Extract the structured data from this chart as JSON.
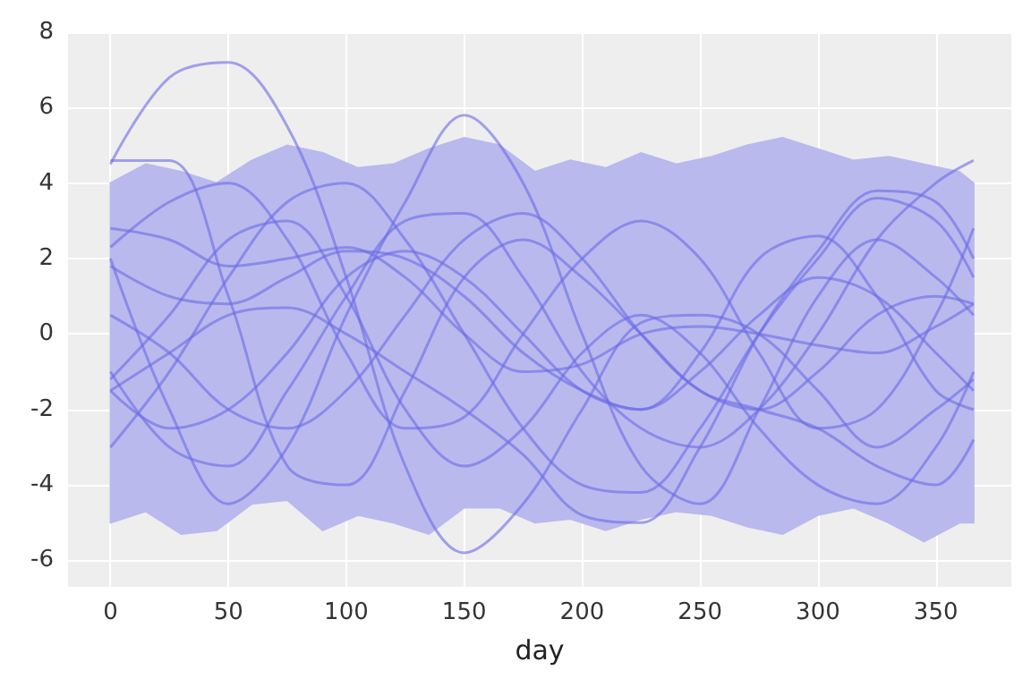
{
  "chart_data": {
    "type": "line",
    "xlabel": "day",
    "xlim": [
      -18,
      382
    ],
    "ylim": [
      -6.7,
      8
    ],
    "xticks": [
      0,
      50,
      100,
      150,
      200,
      250,
      300,
      350
    ],
    "yticks": [
      -6,
      -4,
      -2,
      0,
      2,
      4,
      6,
      8
    ],
    "grid": true,
    "marker": "none",
    "line_style": "solid",
    "series": [
      {
        "color": "#b9b9ee",
        "x": [
          0,
          15,
          30,
          45,
          60,
          75,
          90,
          105,
          120,
          135,
          150,
          165,
          180,
          195,
          210,
          225,
          240,
          255,
          270,
          285,
          300,
          315,
          330,
          345,
          360,
          366
        ],
        "values": [
          null,
          null,
          null,
          null,
          null,
          null,
          null,
          null,
          null,
          null,
          null,
          null,
          null,
          null,
          null,
          null,
          null,
          null,
          null,
          null,
          null,
          null,
          null,
          null,
          null,
          null
        ],
        "upper": [
          4.0,
          4.5,
          4.3,
          4.0,
          4.6,
          5.0,
          4.8,
          4.4,
          4.5,
          4.9,
          5.2,
          5.0,
          4.3,
          4.6,
          4.4,
          4.8,
          4.5,
          4.7,
          5.0,
          5.2,
          4.9,
          4.6,
          4.7,
          4.5,
          4.3,
          4.0
        ],
        "lower": [
          -5.0,
          -4.7,
          -5.3,
          -5.2,
          -4.5,
          -4.4,
          -5.2,
          -4.8,
          -5.0,
          -5.3,
          -4.6,
          -4.6,
          -5.0,
          -4.9,
          -5.2,
          -4.9,
          -4.7,
          -4.8,
          -5.1,
          -5.3,
          -4.8,
          -4.6,
          -5.0,
          -5.5,
          -5.0,
          -5.0
        ]
      },
      {
        "color": "#6b6be6",
        "x": [
          0,
          25,
          50,
          75,
          100,
          125,
          150,
          175,
          200,
          225,
          250,
          275,
          300,
          325,
          350,
          366
        ],
        "values": [
          4.5,
          6.8,
          7.2,
          5.5,
          1.5,
          -3.5,
          -5.8,
          -4.5,
          -2.0,
          0.3,
          0.5,
          0.0,
          -1.5,
          -3.0,
          -2.0,
          -1.2
        ]
      },
      {
        "color": "#6b6be6",
        "x": [
          0,
          25,
          50,
          75,
          100,
          125,
          150,
          175,
          200,
          225,
          250,
          275,
          300,
          325,
          350,
          366
        ],
        "values": [
          4.6,
          4.6,
          1.0,
          -3.5,
          -4.0,
          -1.5,
          1.5,
          2.5,
          1.5,
          0.0,
          -1.5,
          -2.0,
          -1.0,
          0.5,
          1.0,
          0.8
        ]
      },
      {
        "color": "#6b6be6",
        "x": [
          0,
          25,
          50,
          75,
          100,
          125,
          150,
          175,
          200,
          225,
          250,
          275,
          300,
          325,
          350,
          366
        ],
        "values": [
          2.0,
          -2.0,
          -4.5,
          -3.0,
          0.5,
          3.5,
          5.8,
          4.0,
          0.0,
          -3.5,
          -4.5,
          -2.0,
          1.0,
          2.5,
          1.5,
          0.5
        ]
      },
      {
        "color": "#6b6be6",
        "x": [
          0,
          25,
          50,
          75,
          100,
          125,
          150,
          175,
          200,
          225,
          250,
          275,
          300,
          325,
          350,
          366
        ],
        "values": [
          2.8,
          2.5,
          1.8,
          2.0,
          2.3,
          1.5,
          0.0,
          -1.0,
          -0.8,
          0.0,
          0.2,
          0.0,
          -0.3,
          -0.5,
          0.2,
          0.8
        ]
      },
      {
        "color": "#6b6be6",
        "x": [
          0,
          25,
          50,
          75,
          100,
          125,
          150,
          175,
          200,
          225,
          250,
          275,
          300,
          325,
          350,
          366
        ],
        "values": [
          -3.0,
          -1.0,
          1.5,
          3.5,
          4.0,
          2.5,
          0.0,
          -2.5,
          -4.0,
          -4.2,
          -2.5,
          0.0,
          2.0,
          3.6,
          3.0,
          1.5
        ]
      },
      {
        "color": "#6b6be6",
        "x": [
          0,
          25,
          50,
          75,
          100,
          125,
          150,
          175,
          200,
          225,
          250,
          275,
          300,
          325,
          350,
          366
        ],
        "values": [
          1.8,
          1.0,
          0.8,
          1.5,
          2.2,
          2.0,
          1.0,
          -0.5,
          -1.5,
          -2.0,
          -1.0,
          0.5,
          1.5,
          1.0,
          -0.5,
          -1.5
        ]
      },
      {
        "color": "#6b6be6",
        "x": [
          0,
          25,
          50,
          75,
          100,
          125,
          150,
          175,
          200,
          225,
          250,
          275,
          300,
          325,
          350,
          366
        ],
        "values": [
          0.5,
          -0.5,
          -2.0,
          -2.5,
          -1.5,
          0.5,
          2.5,
          3.2,
          2.0,
          0.0,
          -1.5,
          -2.0,
          -2.5,
          -3.5,
          -4.0,
          -2.8
        ]
      },
      {
        "color": "#6b6be6",
        "x": [
          0,
          25,
          50,
          75,
          100,
          125,
          150,
          175,
          200,
          225,
          250,
          275,
          300,
          325,
          350,
          366
        ],
        "values": [
          -1.5,
          -2.5,
          -2.0,
          -0.5,
          1.5,
          2.2,
          1.5,
          0.0,
          -1.5,
          -2.0,
          -0.5,
          2.0,
          2.6,
          1.0,
          -1.5,
          -2.0
        ]
      },
      {
        "color": "#6b6be6",
        "x": [
          0,
          25,
          50,
          75,
          100,
          125,
          150,
          175,
          200,
          225,
          250,
          275,
          300,
          325,
          350,
          366
        ],
        "values": [
          -1.2,
          0.5,
          2.5,
          3.0,
          1.0,
          -2.0,
          -3.5,
          -2.5,
          -0.5,
          0.5,
          -0.5,
          -2.5,
          -4.0,
          -4.5,
          -3.0,
          -1.0
        ]
      },
      {
        "color": "#6b6be6",
        "x": [
          0,
          25,
          50,
          75,
          100,
          125,
          150,
          175,
          200,
          225,
          250,
          275,
          300,
          325,
          350,
          366
        ],
        "values": [
          -1.5,
          -0.5,
          0.5,
          0.7,
          0.0,
          -1.0,
          -2.0,
          -3.2,
          -4.8,
          -5.0,
          -3.0,
          0.0,
          2.2,
          3.8,
          3.5,
          2.0
        ]
      },
      {
        "color": "#6b6be6",
        "x": [
          0,
          25,
          50,
          75,
          100,
          125,
          150,
          175,
          200,
          225,
          250,
          275,
          300,
          325,
          350,
          366
        ],
        "values": [
          2.3,
          3.5,
          4.0,
          2.5,
          -0.5,
          -2.5,
          -2.2,
          0.0,
          2.0,
          3.0,
          2.0,
          -0.5,
          -2.5,
          -2.0,
          0.5,
          2.8
        ]
      },
      {
        "color": "#6b6be6",
        "x": [
          0,
          25,
          50,
          75,
          100,
          125,
          150,
          175,
          200,
          225,
          250,
          275,
          300,
          325,
          350,
          366
        ],
        "values": [
          -1.0,
          -3.0,
          -3.5,
          -1.5,
          1.0,
          3.0,
          3.2,
          1.5,
          -1.0,
          -2.5,
          -3.0,
          -2.0,
          0.0,
          2.5,
          4.0,
          4.6
        ]
      }
    ]
  }
}
